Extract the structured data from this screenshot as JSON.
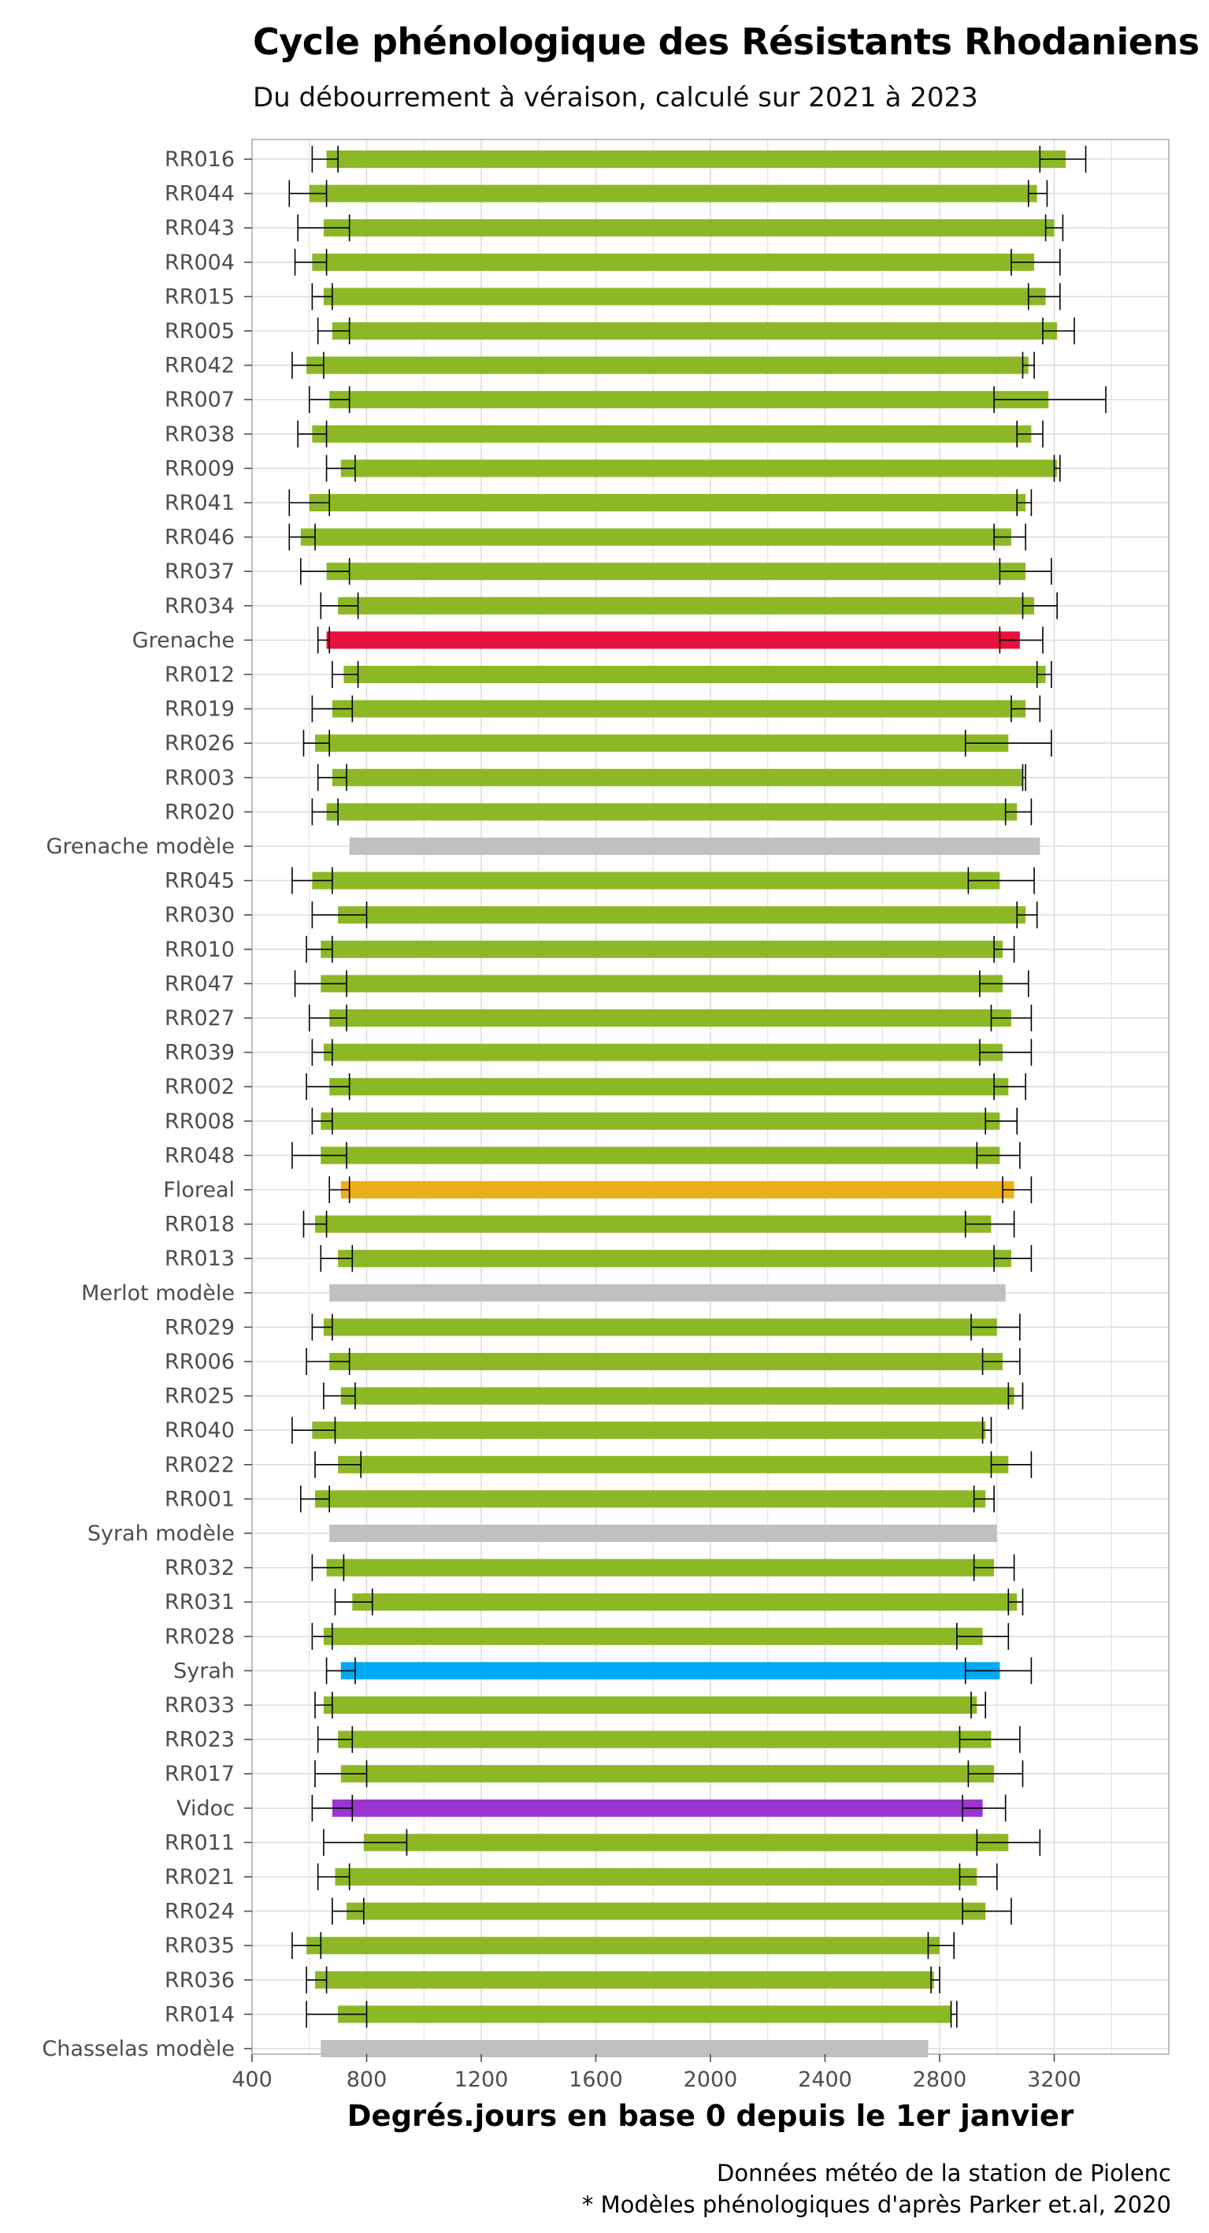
{
  "title": "Cycle phénologique des Résistants Rhodaniens",
  "subtitle": "Du débourrement à véraison, calculé sur 2021 à 2023",
  "caption": [
    "Données météo de la station de Piolenc",
    "* Modèles phénologiques d'après Parker et.al, 2020"
  ],
  "chart_data": {
    "type": "bar",
    "orientation": "horizontal-range",
    "xlabel": "Degrés.jours en base 0 depuis le 1er janvier",
    "ylabel": "",
    "xlim": [
      400,
      3600
    ],
    "xticks": [
      400,
      800,
      1200,
      1600,
      2000,
      2400,
      2800,
      3200
    ],
    "grid": true,
    "colors": {
      "default": "#8db826",
      "Grenache": "#e8103d",
      "Floreal": "#edaf17",
      "Syrah": "#00a9f5",
      "Vidoc": "#9a35cf",
      "model": "#c0c0c0",
      "errorbar": "#000000",
      "grid": "#dedede"
    },
    "series": [
      {
        "label": "RR016",
        "start": 660,
        "end": 3240,
        "start_err": [
          610,
          700
        ],
        "end_err": [
          3150,
          3310
        ]
      },
      {
        "label": "RR044",
        "start": 600,
        "end": 3140,
        "start_err": [
          530,
          660
        ],
        "end_err": [
          3110,
          3175
        ]
      },
      {
        "label": "RR043",
        "start": 650,
        "end": 3200,
        "start_err": [
          560,
          740
        ],
        "end_err": [
          3170,
          3230
        ]
      },
      {
        "label": "RR004",
        "start": 610,
        "end": 3130,
        "start_err": [
          550,
          660
        ],
        "end_err": [
          3050,
          3220
        ]
      },
      {
        "label": "RR015",
        "start": 650,
        "end": 3170,
        "start_err": [
          610,
          680
        ],
        "end_err": [
          3110,
          3220
        ]
      },
      {
        "label": "RR005",
        "start": 680,
        "end": 3210,
        "start_err": [
          630,
          740
        ],
        "end_err": [
          3160,
          3270
        ]
      },
      {
        "label": "RR042",
        "start": 590,
        "end": 3110,
        "start_err": [
          540,
          650
        ],
        "end_err": [
          3090,
          3130
        ]
      },
      {
        "label": "RR007",
        "start": 670,
        "end": 3180,
        "start_err": [
          600,
          740
        ],
        "end_err": [
          2990,
          3380
        ]
      },
      {
        "label": "RR038",
        "start": 610,
        "end": 3120,
        "start_err": [
          560,
          660
        ],
        "end_err": [
          3070,
          3160
        ]
      },
      {
        "label": "RR009",
        "start": 710,
        "end": 3210,
        "start_err": [
          660,
          760
        ],
        "end_err": [
          3200,
          3220
        ]
      },
      {
        "label": "RR041",
        "start": 600,
        "end": 3100,
        "start_err": [
          530,
          670
        ],
        "end_err": [
          3070,
          3120
        ]
      },
      {
        "label": "RR046",
        "start": 570,
        "end": 3050,
        "start_err": [
          530,
          620
        ],
        "end_err": [
          2990,
          3100
        ]
      },
      {
        "label": "RR037",
        "start": 660,
        "end": 3100,
        "start_err": [
          570,
          740
        ],
        "end_err": [
          3010,
          3190
        ]
      },
      {
        "label": "RR034",
        "start": 700,
        "end": 3130,
        "start_err": [
          640,
          770
        ],
        "end_err": [
          3090,
          3210
        ]
      },
      {
        "label": "Grenache",
        "start": 660,
        "end": 3080,
        "start_err": [
          630,
          670
        ],
        "end_err": [
          3010,
          3160
        ]
      },
      {
        "label": "RR012",
        "start": 720,
        "end": 3170,
        "start_err": [
          680,
          770
        ],
        "end_err": [
          3140,
          3190
        ]
      },
      {
        "label": "RR019",
        "start": 680,
        "end": 3100,
        "start_err": [
          610,
          750
        ],
        "end_err": [
          3050,
          3150
        ]
      },
      {
        "label": "RR026",
        "start": 620,
        "end": 3040,
        "start_err": [
          580,
          670
        ],
        "end_err": [
          2890,
          3190
        ]
      },
      {
        "label": "RR003",
        "start": 680,
        "end": 3090,
        "start_err": [
          630,
          730
        ],
        "end_err": [
          3090,
          3100
        ]
      },
      {
        "label": "RR020",
        "start": 660,
        "end": 3070,
        "start_err": [
          610,
          700
        ],
        "end_err": [
          3030,
          3120
        ]
      },
      {
        "label": "Grenache modèle",
        "start": 740,
        "end": 3150
      },
      {
        "label": "RR045",
        "start": 610,
        "end": 3010,
        "start_err": [
          540,
          680
        ],
        "end_err": [
          2900,
          3130
        ]
      },
      {
        "label": "RR030",
        "start": 700,
        "end": 3100,
        "start_err": [
          610,
          800
        ],
        "end_err": [
          3070,
          3140
        ]
      },
      {
        "label": "RR010",
        "start": 640,
        "end": 3020,
        "start_err": [
          590,
          680
        ],
        "end_err": [
          2990,
          3060
        ]
      },
      {
        "label": "RR047",
        "start": 640,
        "end": 3020,
        "start_err": [
          550,
          730
        ],
        "end_err": [
          2940,
          3110
        ]
      },
      {
        "label": "RR027",
        "start": 670,
        "end": 3050,
        "start_err": [
          600,
          730
        ],
        "end_err": [
          2980,
          3120
        ]
      },
      {
        "label": "RR039",
        "start": 650,
        "end": 3020,
        "start_err": [
          610,
          680
        ],
        "end_err": [
          2940,
          3120
        ]
      },
      {
        "label": "RR002",
        "start": 670,
        "end": 3040,
        "start_err": [
          590,
          740
        ],
        "end_err": [
          2990,
          3100
        ]
      },
      {
        "label": "RR008",
        "start": 640,
        "end": 3010,
        "start_err": [
          610,
          680
        ],
        "end_err": [
          2960,
          3070
        ]
      },
      {
        "label": "RR048",
        "start": 640,
        "end": 3010,
        "start_err": [
          540,
          730
        ],
        "end_err": [
          2930,
          3080
        ]
      },
      {
        "label": "Floreal",
        "start": 710,
        "end": 3060,
        "start_err": [
          670,
          740
        ],
        "end_err": [
          3020,
          3120
        ]
      },
      {
        "label": "RR018",
        "start": 620,
        "end": 2980,
        "start_err": [
          580,
          660
        ],
        "end_err": [
          2890,
          3060
        ]
      },
      {
        "label": "RR013",
        "start": 700,
        "end": 3050,
        "start_err": [
          640,
          750
        ],
        "end_err": [
          2990,
          3120
        ]
      },
      {
        "label": "Merlot modèle",
        "start": 670,
        "end": 3030
      },
      {
        "label": "RR029",
        "start": 650,
        "end": 3000,
        "start_err": [
          610,
          680
        ],
        "end_err": [
          2910,
          3080
        ]
      },
      {
        "label": "RR006",
        "start": 670,
        "end": 3020,
        "start_err": [
          590,
          740
        ],
        "end_err": [
          2950,
          3080
        ]
      },
      {
        "label": "RR025",
        "start": 710,
        "end": 3060,
        "start_err": [
          650,
          760
        ],
        "end_err": [
          3040,
          3090
        ]
      },
      {
        "label": "RR040",
        "start": 610,
        "end": 2960,
        "start_err": [
          540,
          690
        ],
        "end_err": [
          2950,
          2980
        ]
      },
      {
        "label": "RR022",
        "start": 700,
        "end": 3040,
        "start_err": [
          620,
          780
        ],
        "end_err": [
          2980,
          3120
        ]
      },
      {
        "label": "RR001",
        "start": 620,
        "end": 2960,
        "start_err": [
          570,
          670
        ],
        "end_err": [
          2920,
          2990
        ]
      },
      {
        "label": "Syrah modèle",
        "start": 670,
        "end": 3000
      },
      {
        "label": "RR032",
        "start": 660,
        "end": 2990,
        "start_err": [
          610,
          720
        ],
        "end_err": [
          2920,
          3060
        ]
      },
      {
        "label": "RR031",
        "start": 750,
        "end": 3070,
        "start_err": [
          690,
          820
        ],
        "end_err": [
          3040,
          3090
        ]
      },
      {
        "label": "RR028",
        "start": 650,
        "end": 2950,
        "start_err": [
          610,
          680
        ],
        "end_err": [
          2860,
          3040
        ]
      },
      {
        "label": "Syrah",
        "start": 710,
        "end": 3010,
        "start_err": [
          660,
          760
        ],
        "end_err": [
          2890,
          3120
        ]
      },
      {
        "label": "RR033",
        "start": 650,
        "end": 2930,
        "start_err": [
          620,
          680
        ],
        "end_err": [
          2910,
          2960
        ]
      },
      {
        "label": "RR023",
        "start": 700,
        "end": 2980,
        "start_err": [
          630,
          750
        ],
        "end_err": [
          2870,
          3080
        ]
      },
      {
        "label": "RR017",
        "start": 710,
        "end": 2990,
        "start_err": [
          620,
          800
        ],
        "end_err": [
          2900,
          3090
        ]
      },
      {
        "label": "Vidoc",
        "start": 680,
        "end": 2950,
        "start_err": [
          610,
          750
        ],
        "end_err": [
          2880,
          3030
        ]
      },
      {
        "label": "RR011",
        "start": 790,
        "end": 3040,
        "start_err": [
          650,
          940
        ],
        "end_err": [
          2930,
          3150
        ]
      },
      {
        "label": "RR021",
        "start": 690,
        "end": 2930,
        "start_err": [
          630,
          740
        ],
        "end_err": [
          2870,
          3000
        ]
      },
      {
        "label": "RR024",
        "start": 730,
        "end": 2960,
        "start_err": [
          680,
          790
        ],
        "end_err": [
          2880,
          3050
        ]
      },
      {
        "label": "RR035",
        "start": 590,
        "end": 2800,
        "start_err": [
          540,
          640
        ],
        "end_err": [
          2760,
          2850
        ]
      },
      {
        "label": "RR036",
        "start": 620,
        "end": 2780,
        "start_err": [
          590,
          660
        ],
        "end_err": [
          2770,
          2800
        ]
      },
      {
        "label": "RR014",
        "start": 700,
        "end": 2840,
        "start_err": [
          590,
          800
        ],
        "end_err": [
          2840,
          2860
        ]
      },
      {
        "label": "Chasselas modèle",
        "start": 640,
        "end": 2760
      }
    ]
  }
}
